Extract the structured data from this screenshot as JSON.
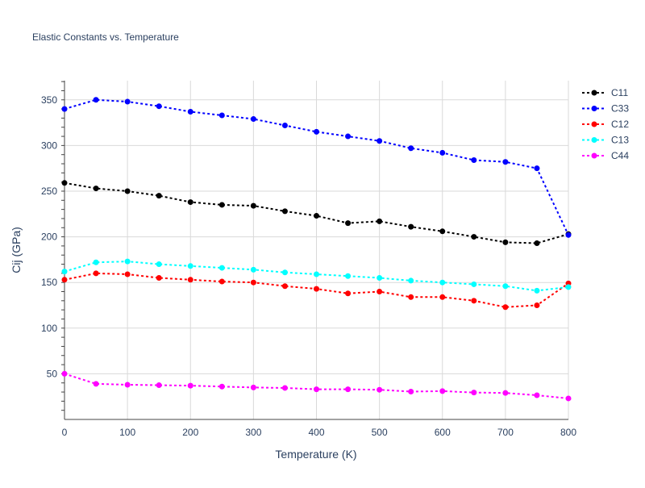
{
  "chart_data": {
    "type": "line",
    "title": "Elastic Constants vs. Temperature",
    "xlabel": "Temperature (K)",
    "ylabel": "Cij (GPa)",
    "xlim": [
      0,
      800
    ],
    "ylim": [
      0,
      371
    ],
    "xticks": [
      0,
      100,
      200,
      300,
      400,
      500,
      600,
      700,
      800
    ],
    "yticks": [
      50,
      100,
      150,
      200,
      250,
      300,
      350
    ],
    "grid": true,
    "legend_position": "top-right",
    "x": [
      0,
      50,
      100,
      150,
      200,
      250,
      300,
      350,
      400,
      450,
      500,
      550,
      600,
      650,
      700,
      750,
      800
    ],
    "series": [
      {
        "name": "C11",
        "color": "#000000",
        "values": [
          259,
          253,
          250,
          245,
          238,
          235,
          234,
          228,
          223,
          215,
          217,
          211,
          206,
          200,
          194,
          193,
          203
        ]
      },
      {
        "name": "C33",
        "color": "#0000ff",
        "values": [
          340,
          350,
          348,
          343,
          337,
          333,
          329,
          322,
          315,
          310,
          305,
          297,
          292,
          284,
          282,
          275,
          202
        ]
      },
      {
        "name": "C12",
        "color": "#ff0000",
        "values": [
          153,
          160,
          159,
          155,
          153,
          151,
          150,
          146,
          143,
          138,
          140,
          134,
          134,
          130,
          123,
          125,
          149
        ]
      },
      {
        "name": "C13",
        "color": "#00ffff",
        "values": [
          162,
          172,
          173,
          170,
          168,
          166,
          164,
          161,
          159,
          157,
          155,
          152,
          150,
          148,
          146,
          141,
          145
        ]
      },
      {
        "name": "C44",
        "color": "#ff00ff",
        "values": [
          50,
          39,
          38,
          37.5,
          37,
          36,
          35,
          34.5,
          33,
          33,
          32.5,
          30.5,
          31,
          29.5,
          29,
          26.5,
          23
        ]
      }
    ]
  }
}
